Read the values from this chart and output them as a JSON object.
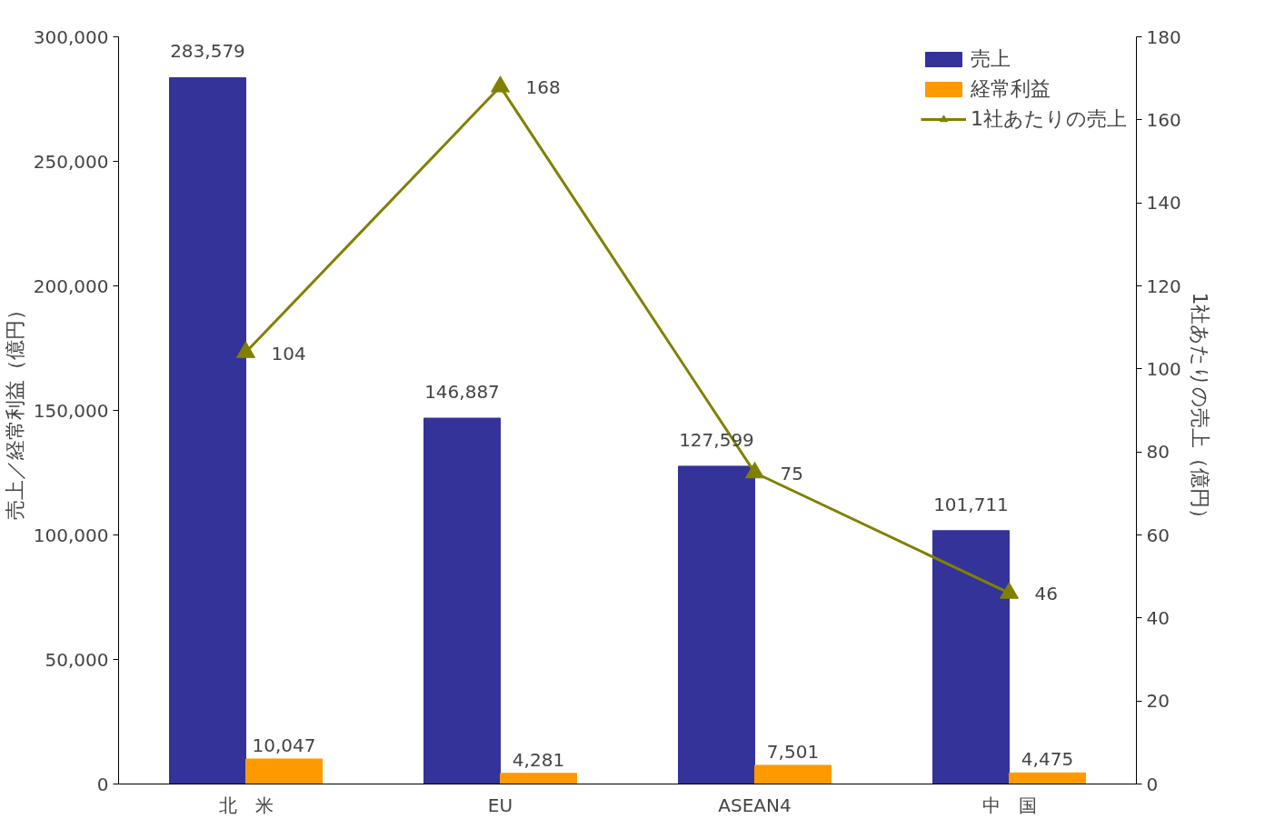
{
  "chart_data": {
    "type": "bar",
    "categories": [
      "北　米",
      "EU",
      "ASEAN4",
      "中　国"
    ],
    "ylabel": "売上／経常利益（億円）",
    "y2label": "1社あたりの売上（億円）",
    "ylim": [
      0,
      300000
    ],
    "yticks": [
      0,
      {
        "value": 50000,
        "label": "50,000"
      },
      {
        "value": 100000,
        "label": "100,000"
      },
      {
        "value": 150000,
        "label": "150,000"
      },
      {
        "value": 200000,
        "label": "200,000"
      },
      {
        "value": 250000,
        "label": "250,000"
      },
      {
        "value": 300000,
        "label": "300,000"
      }
    ],
    "y2lim": [
      0,
      180
    ],
    "y2ticks": [
      0,
      20,
      40,
      60,
      80,
      100,
      120,
      140,
      160,
      180
    ],
    "series": [
      {
        "name": "売上",
        "color": "#333399",
        "values": [
          283579,
          146887,
          127599,
          101711
        ],
        "value_labels": [
          "283,579",
          "146,887",
          "127,599",
          "101,711"
        ]
      },
      {
        "name": "経常利益",
        "color": "#ff9900",
        "values": [
          10047,
          4281,
          7501,
          4475
        ],
        "value_labels": [
          "10,047",
          "4,281",
          "7,501",
          "4,475"
        ]
      },
      {
        "name": "1社あたりの売上",
        "type": "line",
        "axis": "y2",
        "color": "#808000",
        "marker": "triangle",
        "values": [
          104,
          168,
          75,
          46
        ],
        "value_labels": [
          "104",
          "168",
          "75",
          "46"
        ]
      }
    ],
    "grid": false,
    "legend": "top right"
  }
}
